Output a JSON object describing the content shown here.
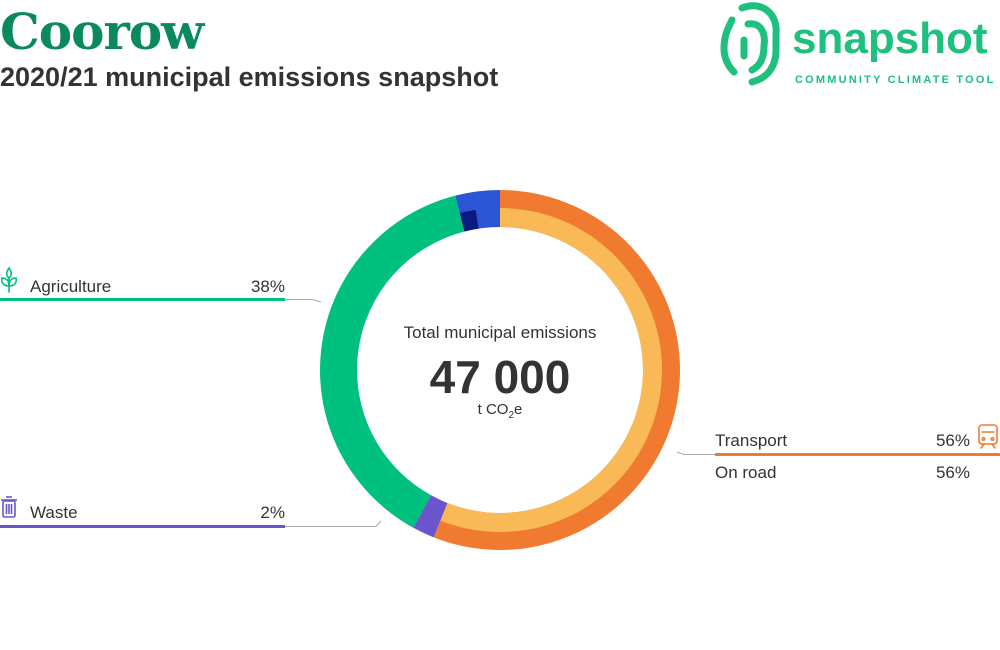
{
  "header": {
    "title": "Coorow",
    "subtitle": "2020/21 municipal emissions snapshot"
  },
  "logo": {
    "wordmark": "snapshot",
    "tagline": "COMMUNITY CLIMATE TOOL",
    "icon": "fingerprint-icon",
    "color": "#1fbf7e"
  },
  "chart_data": {
    "type": "pie",
    "title": "Total municipal emissions",
    "total": {
      "value": "47 000",
      "unit_prefix": "t CO",
      "unit_sub": "2",
      "unit_suffix": "e"
    },
    "categories": [
      {
        "name": "Transport",
        "percent_label": "56%",
        "value": 56,
        "color": "#f07a30",
        "icon": "train-icon",
        "sub": [
          {
            "name": "On road",
            "percent_label": "56%",
            "value": 56,
            "color": "#f8b956"
          }
        ]
      },
      {
        "name": "Waste",
        "percent_label": "2%",
        "value": 2,
        "color": "#6a55cc",
        "icon": "trash-icon",
        "sub": []
      },
      {
        "name": "Agriculture",
        "percent_label": "38%",
        "value": 38,
        "color": "#00c07f",
        "icon": "plant-icon",
        "sub": []
      },
      {
        "name": "",
        "percent_label": "",
        "value": 4,
        "color": "#2b55d4",
        "icon": "",
        "sub": [
          {
            "name": "",
            "value": 1.6,
            "color": "#0a1a80"
          }
        ]
      }
    ]
  }
}
